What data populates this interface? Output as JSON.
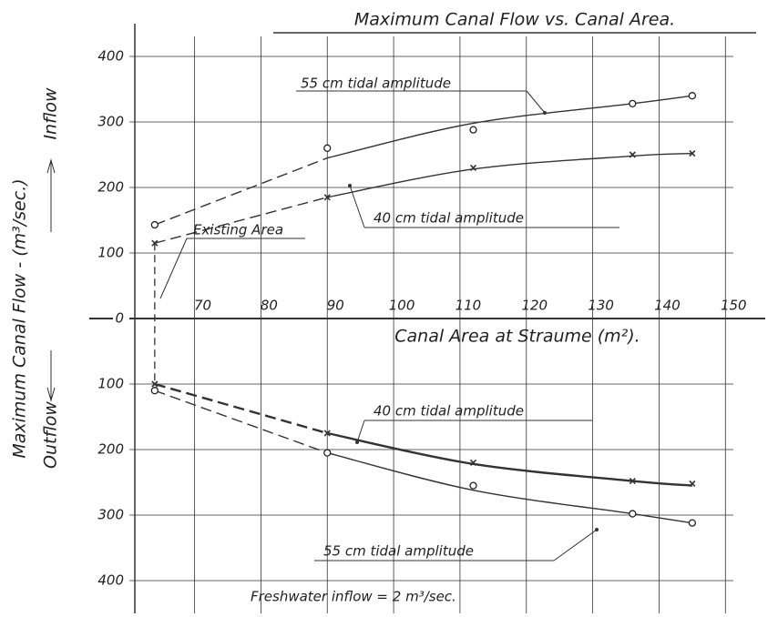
{
  "chart_data": {
    "type": "line",
    "title": "Maximum Canal Flow vs. Canal Area.",
    "xlabel": "Canal Area at Straume (m²).",
    "ylabel": "Maximum Canal Flow - (m³/sec.)",
    "y_up_label": "Inflow",
    "y_down_label": "Outflow",
    "x": [
      64,
      90,
      112,
      136,
      145
    ],
    "series": [
      {
        "name": "55 cm tidal amplitude",
        "marker": "circle",
        "color": "#222",
        "values": [
          143,
          260,
          288,
          328,
          340
        ],
        "fit": [
          143,
          245,
          298,
          328,
          340
        ]
      },
      {
        "name": "40 cm tidal amplitude",
        "marker": "x",
        "color": "#222",
        "values": [
          115,
          185,
          230,
          250,
          252
        ],
        "fit": [
          115,
          185,
          228,
          248,
          252
        ]
      },
      {
        "name": "40 cm tidal amplitude",
        "marker": "x",
        "color": "#222",
        "values": [
          -100,
          -175,
          -220,
          -248,
          -252
        ],
        "fit": [
          -100,
          -175,
          -222,
          -248,
          -255
        ]
      },
      {
        "name": "55 cm tidal amplitude",
        "marker": "circle",
        "color": "#222",
        "values": [
          -110,
          -205,
          -255,
          -298,
          -312
        ],
        "fit": [
          -110,
          -205,
          -262,
          -298,
          -312
        ]
      }
    ],
    "annotations": [
      "Existing Area",
      "Freshwater inflow = 2 m³/sec."
    ],
    "xlim": [
      61,
      156
    ],
    "xticks": [
      70,
      80,
      90,
      100,
      110,
      120,
      130,
      140,
      150
    ],
    "ylim": [
      -450,
      450
    ],
    "yticks": [
      {
        "value": -400,
        "label": "400"
      },
      {
        "value": -300,
        "label": "300"
      },
      {
        "value": -200,
        "label": "200"
      },
      {
        "value": -100,
        "label": "100"
      },
      0,
      100,
      200,
      300,
      400
    ],
    "grid": true
  }
}
